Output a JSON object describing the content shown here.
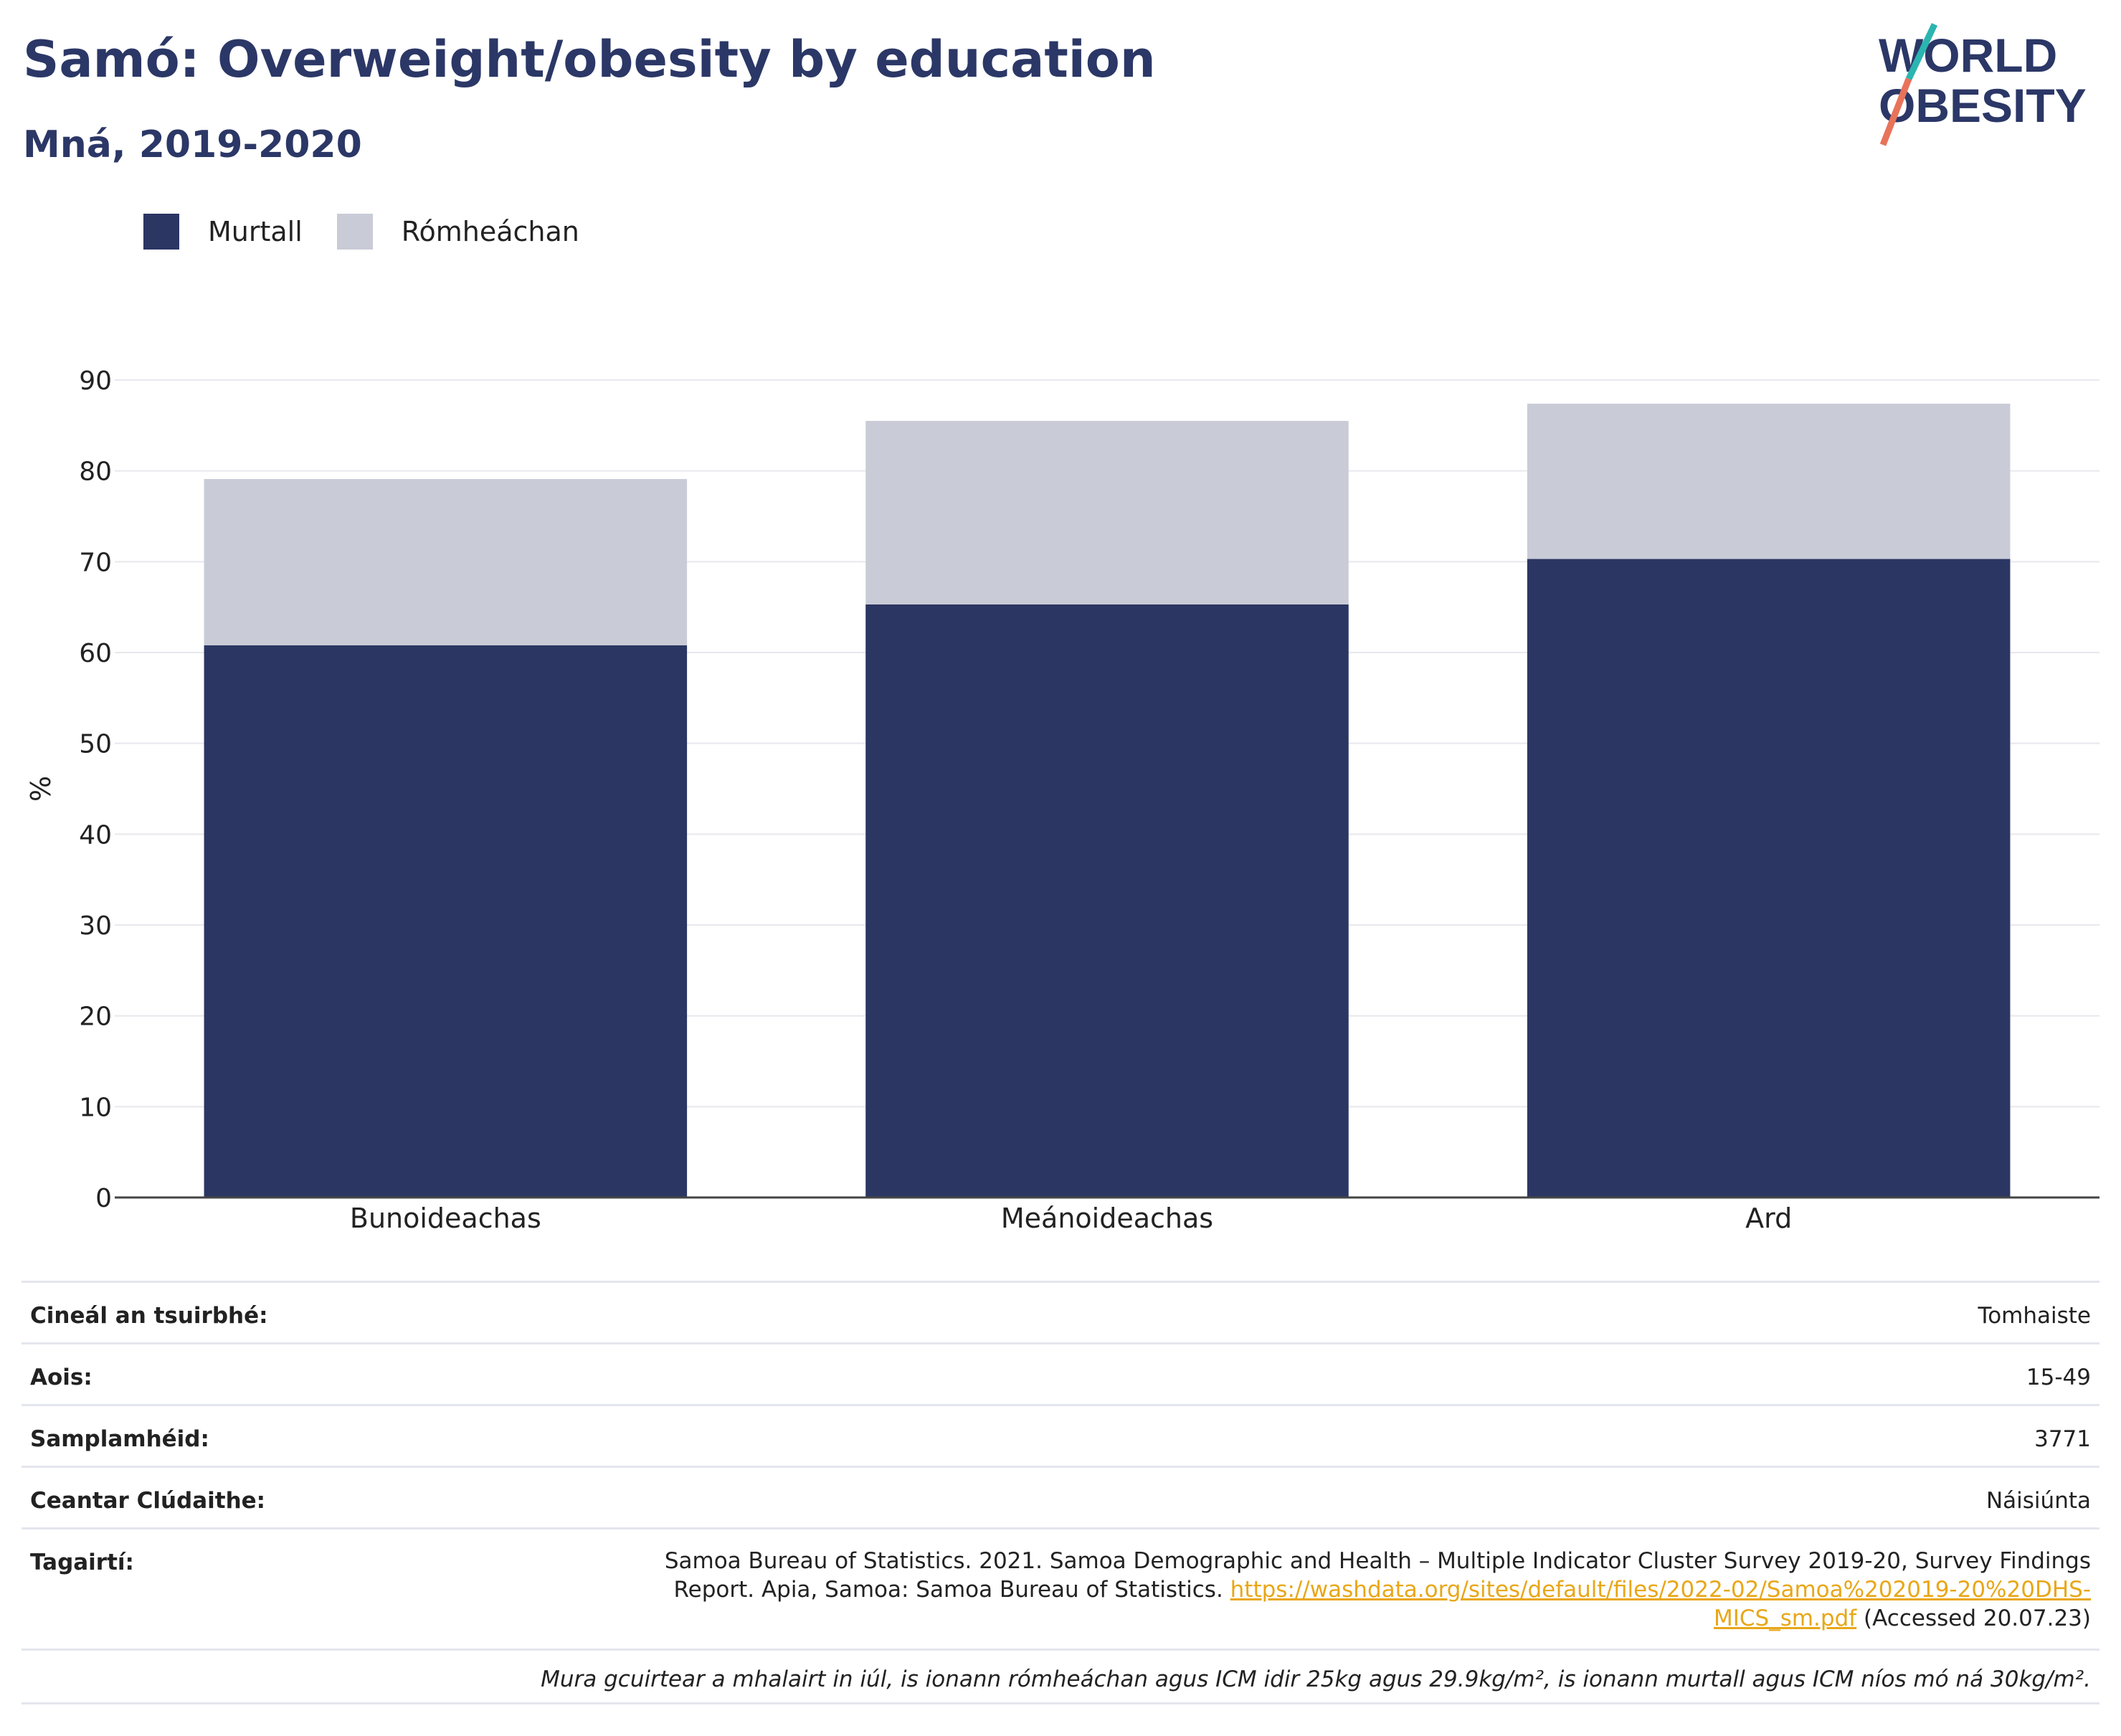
{
  "header": {
    "title": "Samó: Overweight/obesity by education",
    "subtitle": "Mná, 2019-2020",
    "logo_line1": "WORLD",
    "logo_line2": "OBESITY"
  },
  "legend": [
    {
      "label": "Murtall",
      "color": "#2b3663"
    },
    {
      "label": "Rómheáchan",
      "color": "#c9ccd7"
    }
  ],
  "chart_data": {
    "type": "bar",
    "stacked": true,
    "categories": [
      "Bunoideachas",
      "Meánoideachas",
      "Ard"
    ],
    "series": [
      {
        "name": "Murtall",
        "values": [
          60.8,
          65.3,
          70.3
        ],
        "color": "#2b3663"
      },
      {
        "name": "Rómheáchan",
        "values": [
          18.3,
          20.2,
          17.1
        ],
        "color": "#c9ccd7"
      }
    ],
    "ylabel": "%",
    "ylim": [
      0,
      90
    ],
    "yticks": [
      0,
      10,
      20,
      30,
      40,
      50,
      60,
      70,
      80,
      90
    ],
    "grid": true,
    "legend_position": "top-left"
  },
  "info": {
    "survey_type": {
      "label": "Cineál an tsuirbhé:",
      "value": "Tomhaiste"
    },
    "age": {
      "label": "Aois:",
      "value": "15-49"
    },
    "sample_size": {
      "label": "Samplamhéid:",
      "value": "3771"
    },
    "coverage": {
      "label": "Ceantar Clúdaithe:",
      "value": "Náisiúnta"
    },
    "references": {
      "label": "Tagairtí:",
      "text": "Samoa Bureau of Statistics. 2021. Samoa Demographic and Health – Multiple Indicator Cluster Survey 2019-20, Survey Findings Report. Apia, Samoa: Samoa Bureau of Statistics.",
      "link": "https://washdata.org/sites/default/files/2022-02/Samoa%202019-20%20DHS-MICS_sm.pdf",
      "accessed": "(Accessed 20.07.23)"
    },
    "note": "Mura gcuirtear a mhalairt in iúl, is ionann rómheáchan agus ICM idir 25kg agus 29.9kg/m², is ionann murtall agus ICM níos mó ná 30kg/m²."
  }
}
